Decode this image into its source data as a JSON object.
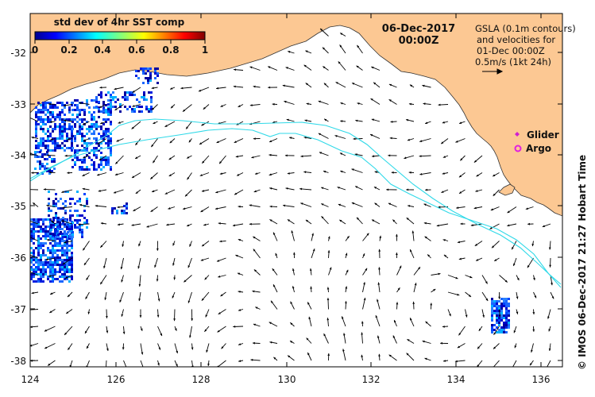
{
  "map": {
    "colorbar_title": "std dev of 4hr SST comp",
    "colorbar_ticks": [
      "0",
      "0.2",
      "0.4",
      "0.6",
      "0.8",
      "1"
    ],
    "date": "06-Dec-2017",
    "time": "00:00Z",
    "legend_lines": [
      "GSLA (0.1m contours)",
      "and velocities for",
      "01-Dec 00:00Z",
      "0.5m/s (1kt 24h)"
    ],
    "glider_label": "Glider",
    "argo_label": "Argo",
    "credit": "©  IMOS 06-Dec-2017 21:27 Hobart Time",
    "lat_labels": [
      "-32",
      "-33",
      "-34",
      "-35",
      "-36",
      "-37",
      "-38"
    ],
    "lon_labels": [
      "124",
      "126",
      "128",
      "130",
      "132",
      "134",
      "136"
    ],
    "lon_range": [
      124,
      136.6
    ],
    "lat_range": [
      -31.3,
      -38.1
    ],
    "colors": {
      "land": "#fcc893",
      "sea": "#ffffff",
      "contour": "#2fd9e8",
      "glider": "#d020d0",
      "argo": "#e020e0",
      "arrows": "#000000"
    }
  }
}
